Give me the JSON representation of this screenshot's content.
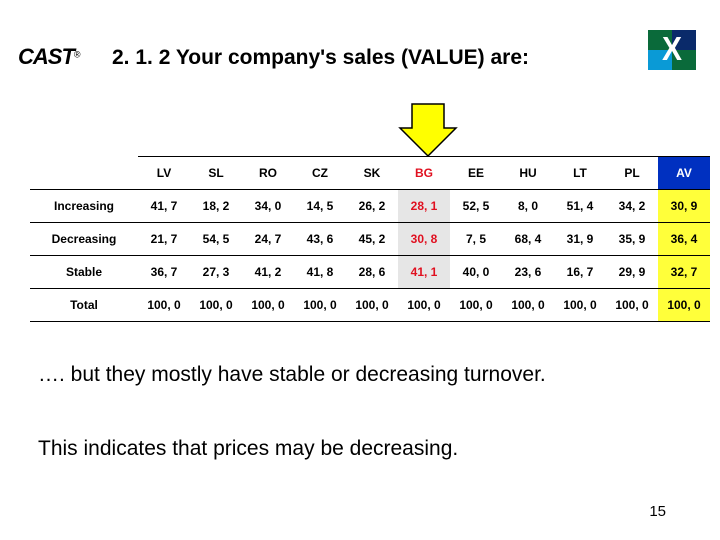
{
  "logo_left": {
    "text": "CAST",
    "reg": "®"
  },
  "title": "2. 1. 2  Your company's sales (VALUE) are:",
  "arrow": {
    "fill": "#ffff00",
    "stroke": "#000000"
  },
  "table": {
    "columns": [
      "LV",
      "SL",
      "RO",
      "CZ",
      "SK",
      "BG",
      "EE",
      "HU",
      "LT",
      "PL",
      "AV"
    ],
    "highlight_column": "BG",
    "av_column": "AV",
    "header_av_bg": "#0030c0",
    "header_av_fg": "#ffffff",
    "cell_av_bg": "#ffff3a",
    "hi_fg": "#e01020",
    "hi_bg": "#e6e6e6",
    "border_color": "#000000",
    "rows": [
      {
        "label": "Increasing",
        "values": [
          "41, 7",
          "18, 2",
          "34, 0",
          "14, 5",
          "26, 2",
          "28, 1",
          "52, 5",
          "8, 0",
          "51, 4",
          "34, 2",
          "30, 9"
        ]
      },
      {
        "label": "Decreasing",
        "values": [
          "21, 7",
          "54, 5",
          "24, 7",
          "43, 6",
          "45, 2",
          "30, 8",
          "7, 5",
          "68, 4",
          "31, 9",
          "35, 9",
          "36, 4"
        ]
      },
      {
        "label": "Stable",
        "values": [
          "36, 7",
          "27, 3",
          "41, 2",
          "41, 8",
          "28, 6",
          "41, 1",
          "40, 0",
          "23, 6",
          "16, 7",
          "29, 9",
          "32, 7"
        ]
      },
      {
        "label": "Total",
        "values": [
          "100, 0",
          "100, 0",
          "100, 0",
          "100, 0",
          "100, 0",
          "100, 0",
          "100, 0",
          "100, 0",
          "100, 0",
          "100, 0",
          "100, 0"
        ]
      }
    ]
  },
  "paragraph1": "…. but they mostly have stable or decreasing turnover.",
  "paragraph2": "This indicates that prices may be decreasing.",
  "page_number": "15"
}
